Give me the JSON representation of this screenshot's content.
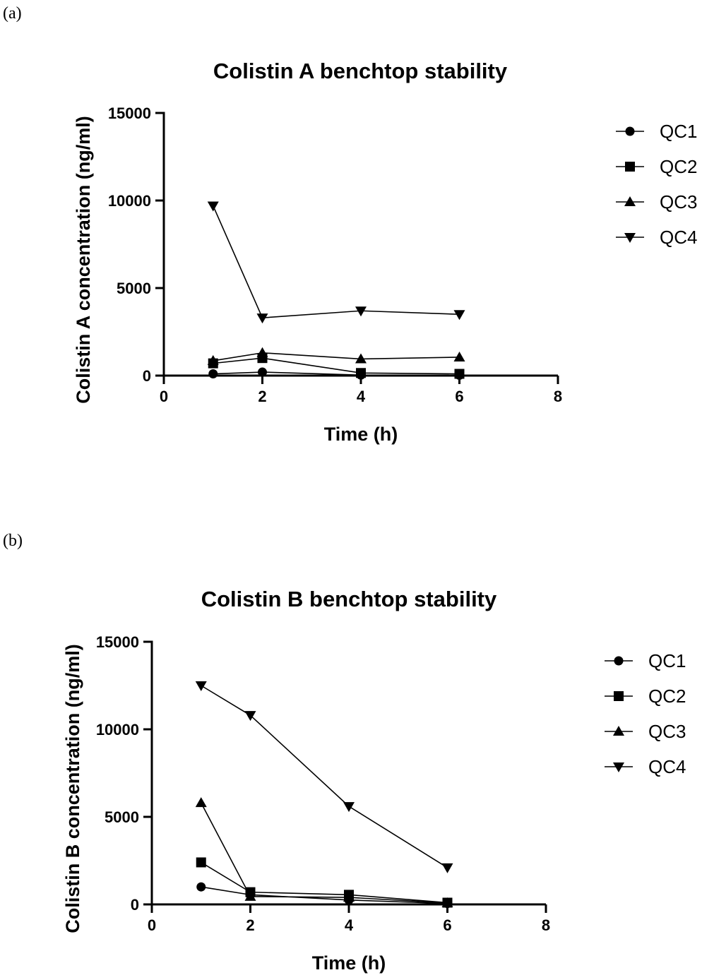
{
  "chart_data": [
    {
      "panel_label": "(a)",
      "type": "line",
      "title": "Colistin A benchtop stability",
      "xlabel": "Time (h)",
      "ylabel": "Colistin A concentration (ng/ml)",
      "xlim": [
        0,
        8
      ],
      "ylim": [
        0,
        15000
      ],
      "xticks": [
        0,
        2,
        4,
        6,
        8
      ],
      "yticks": [
        0,
        5000,
        10000,
        15000
      ],
      "grid": false,
      "legend_position": "right",
      "x": [
        1,
        2,
        4,
        6
      ],
      "series": [
        {
          "name": "QC1",
          "marker": "circle",
          "values": [
            100,
            200,
            30,
            20
          ]
        },
        {
          "name": "QC2",
          "marker": "square",
          "values": [
            700,
            1000,
            150,
            100
          ]
        },
        {
          "name": "QC3",
          "marker": "triangle-up",
          "values": [
            850,
            1300,
            950,
            1050
          ]
        },
        {
          "name": "QC4",
          "marker": "triangle-down",
          "values": [
            9700,
            3300,
            3700,
            3500
          ]
        }
      ]
    },
    {
      "panel_label": "(b)",
      "type": "line",
      "title": "Colistin B benchtop stability",
      "xlabel": "Time (h)",
      "ylabel": "Colistin B concentration (ng/ml)",
      "xlim": [
        0,
        8
      ],
      "ylim": [
        0,
        15000
      ],
      "xticks": [
        0,
        2,
        4,
        6,
        8
      ],
      "yticks": [
        0,
        5000,
        10000,
        15000
      ],
      "grid": false,
      "legend_position": "right",
      "x": [
        1,
        2,
        4,
        6
      ],
      "series": [
        {
          "name": "QC1",
          "marker": "circle",
          "values": [
            1000,
            550,
            250,
            50
          ]
        },
        {
          "name": "QC2",
          "marker": "square",
          "values": [
            2400,
            700,
            550,
            100
          ]
        },
        {
          "name": "QC3",
          "marker": "triangle-up",
          "values": [
            5800,
            450,
            400,
            80
          ]
        },
        {
          "name": "QC4",
          "marker": "triangle-down",
          "values": [
            12500,
            10800,
            5600,
            2100
          ]
        }
      ]
    }
  ]
}
